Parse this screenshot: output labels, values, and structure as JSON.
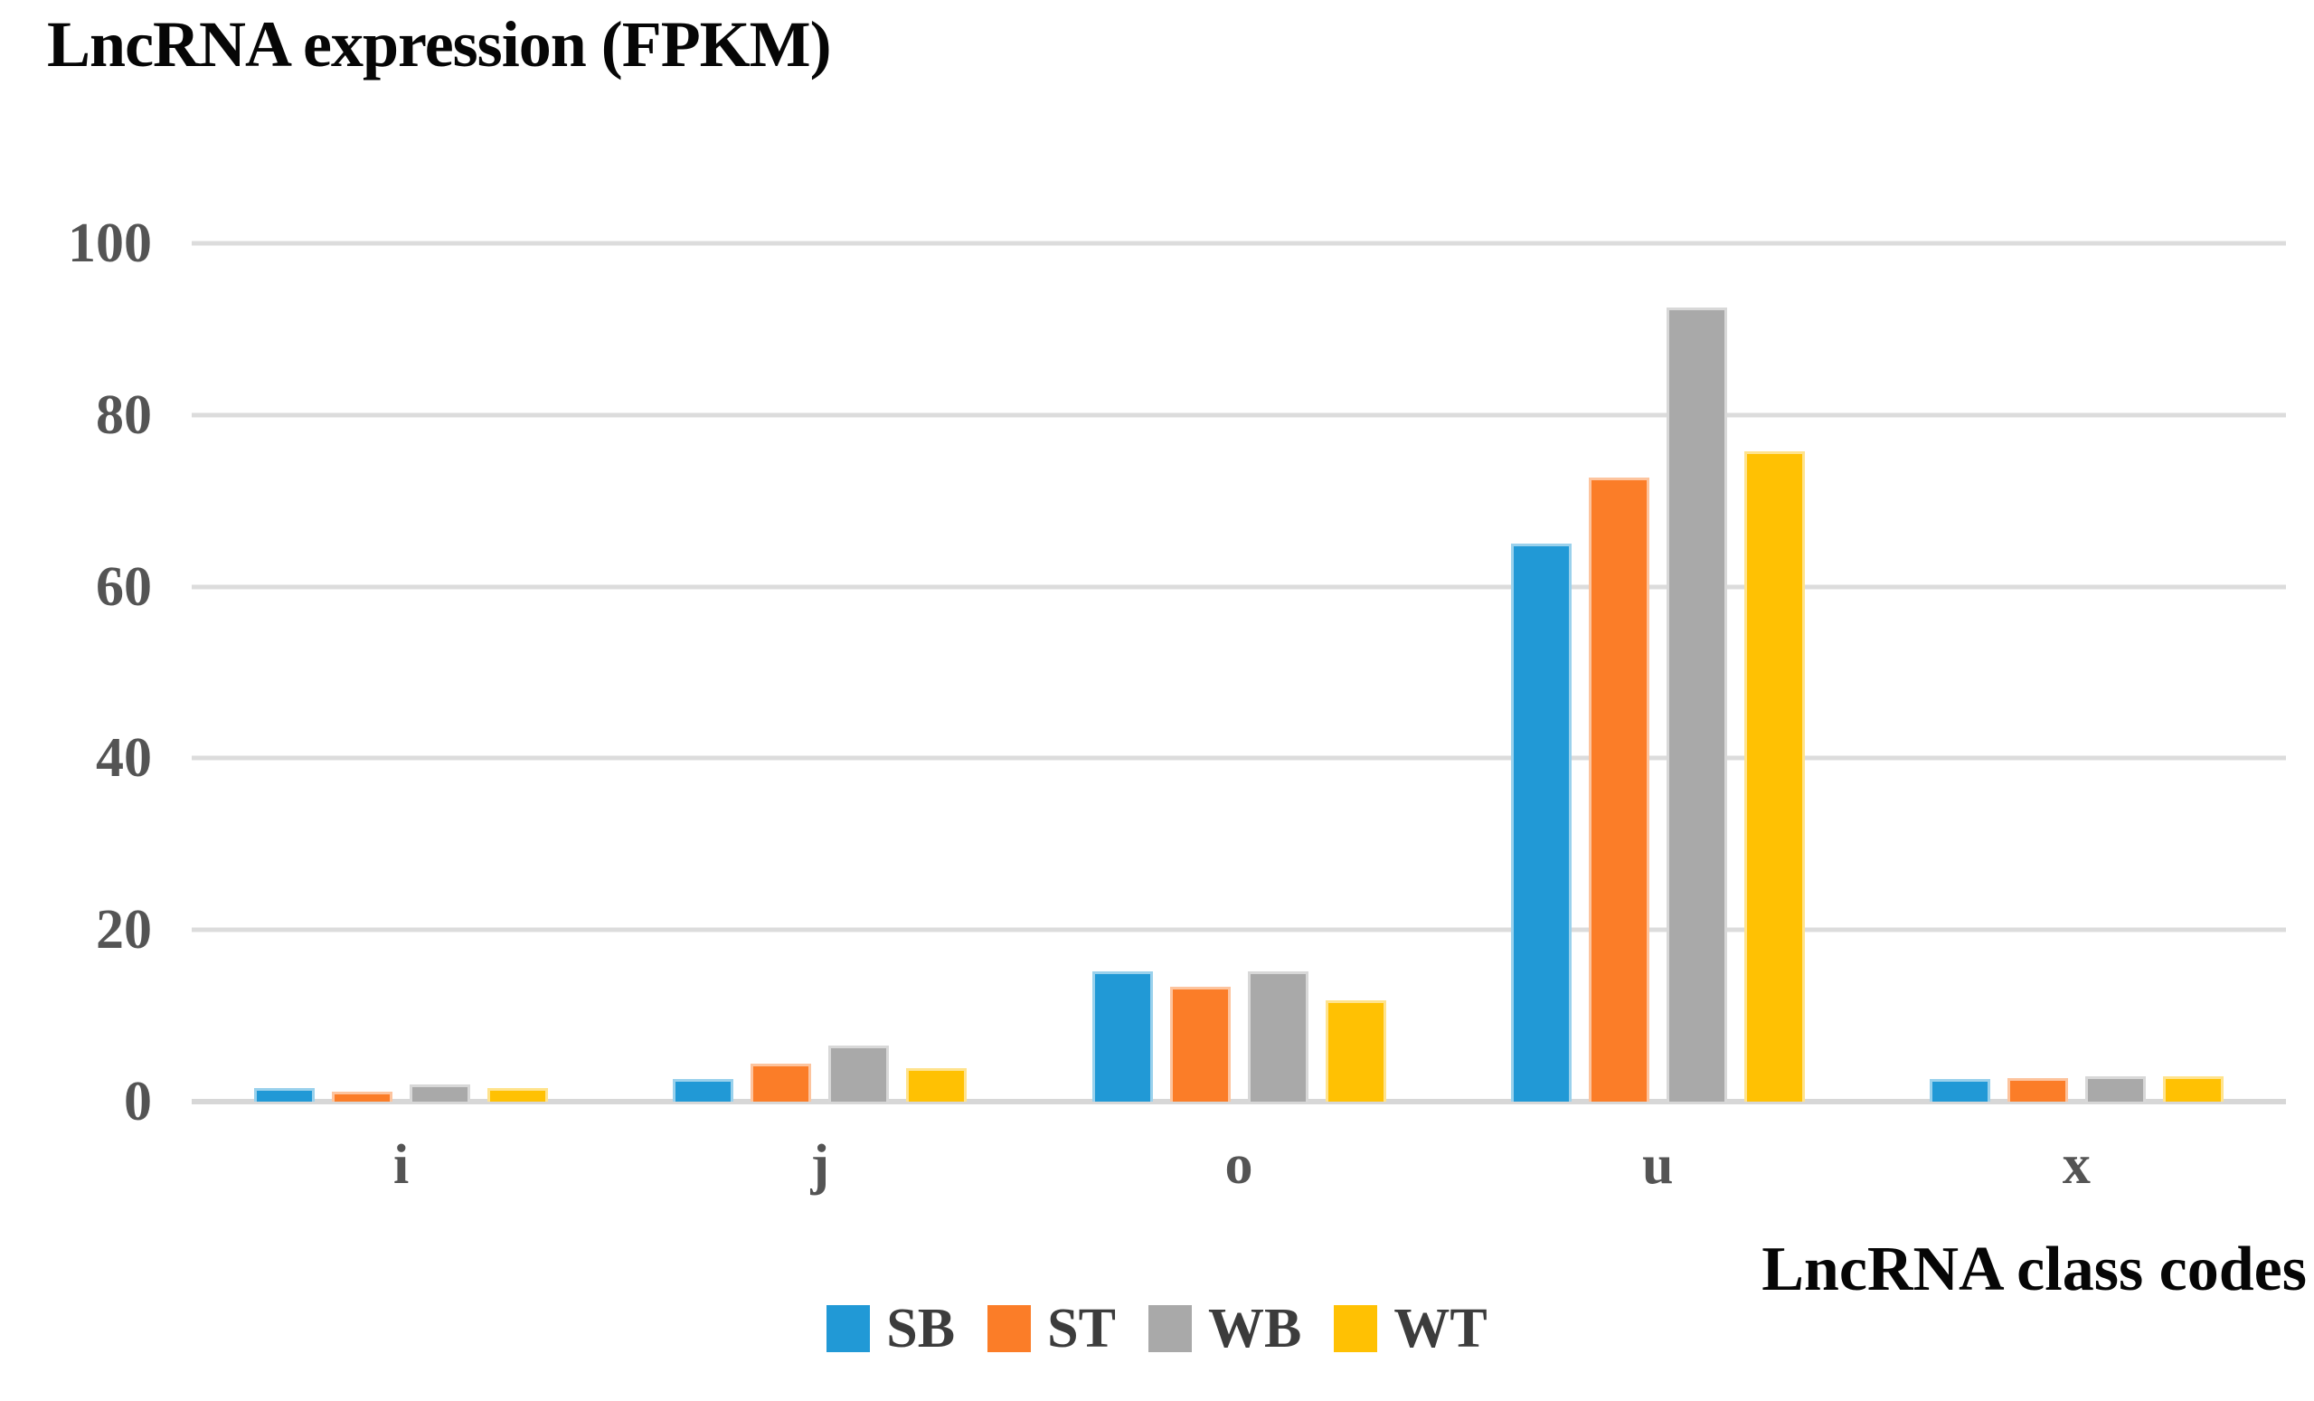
{
  "title": "LncRNA expression (FPKM)",
  "x_axis_title": "LncRNA class codes",
  "colors": {
    "SB": "#2199D6",
    "ST": "#FB7D28",
    "WB": "#A9A9A9",
    "WT": "#FFC103",
    "gridline": "#DCDCDC",
    "tick_text": "#545454",
    "title_text": "#060606"
  },
  "chart_data": {
    "type": "bar",
    "title": "LncRNA expression (FPKM)",
    "xlabel": "LncRNA class codes",
    "ylabel": "",
    "categories": [
      "i",
      "j",
      "o",
      "u",
      "x"
    ],
    "series": [
      {
        "name": "SB",
        "color": "#2199D6",
        "values": [
          1.6,
          2.6,
          15.2,
          65.0,
          2.6
        ]
      },
      {
        "name": "ST",
        "color": "#FB7D28",
        "values": [
          1.2,
          4.4,
          13.4,
          72.7,
          2.7
        ]
      },
      {
        "name": "WB",
        "color": "#A9A9A9",
        "values": [
          2.0,
          6.5,
          15.2,
          92.5,
          3.0
        ]
      },
      {
        "name": "WT",
        "color": "#FFC103",
        "values": [
          1.6,
          3.9,
          11.8,
          75.8,
          3.0
        ]
      }
    ],
    "ylim": [
      0,
      100
    ],
    "yticks": [
      0,
      20,
      40,
      60,
      80,
      100
    ],
    "grid": true,
    "legend_position": "bottom"
  }
}
